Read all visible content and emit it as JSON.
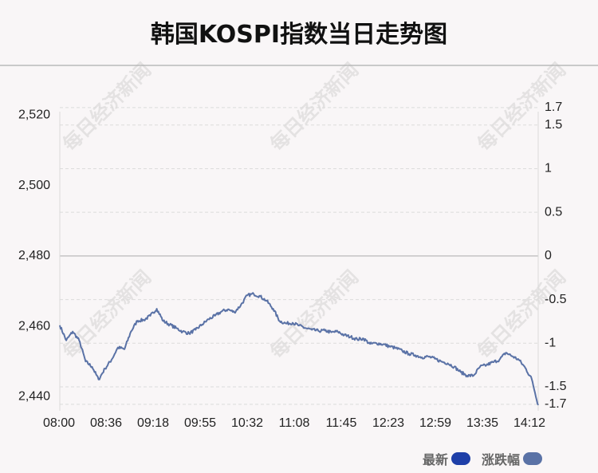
{
  "title": "韩国KOSPI指数当日走势图",
  "watermark": "每日经济新闻",
  "legend": {
    "latest_label": "最新",
    "latest_color": "#1e3fa8",
    "change_label": "涨跌幅",
    "change_color": "#5a72a6"
  },
  "chart_data": {
    "type": "line",
    "title": "韩国KOSPI指数当日走势图",
    "xlabel": "",
    "ylabel": "",
    "x_ticks": [
      "08:00",
      "08:36",
      "09:18",
      "09:55",
      "10:32",
      "11:08",
      "11:45",
      "12:23",
      "12:59",
      "13:35",
      "14:12"
    ],
    "y_left": {
      "ticks": [
        2440,
        2460,
        2480,
        2500,
        2520
      ],
      "tick_labels": [
        "2,440",
        "2,460",
        "2,480",
        "2,500",
        "2,520"
      ],
      "range": [
        2436,
        2521
      ]
    },
    "y_right": {
      "ticks": [
        -1.7,
        -1.5,
        -1,
        -0.5,
        0,
        0.5,
        1,
        1.5,
        1.7
      ],
      "tick_labels": [
        "-1.7",
        "-1.5",
        "-1",
        "-0.5",
        "0",
        "0.5",
        "1",
        "1.5",
        "1.7"
      ]
    },
    "baseline": 2480,
    "grid": true,
    "legend_position": "bottom-right",
    "series": [
      {
        "values": [
          2460.3,
          2456,
          2458.5,
          2456,
          2450,
          2448.5,
          2444.9,
          2448,
          2450.5,
          2454,
          2453.5,
          2458.5,
          2461.6,
          2461.8,
          2463,
          2465,
          2461.5,
          2460.5,
          2459.5,
          2458.5,
          2458,
          2459,
          2460.5,
          2462,
          2463,
          2464.2,
          2464.8,
          2464,
          2466,
          2468.8,
          2469.2,
          2468.5,
          2467.2,
          2465,
          2461.5,
          2460.8,
          2461,
          2460.2,
          2459.5,
          2459,
          2458.7,
          2458.8,
          2458.3,
          2458.5,
          2457.5,
          2457,
          2456.3,
          2456.5,
          2455,
          2455.2,
          2454.9,
          2454.3,
          2453.8,
          2453,
          2452.2,
          2451.8,
          2451.2,
          2451.4,
          2450.8,
          2450,
          2449.5,
          2448.5,
          2447,
          2446,
          2446,
          2448.5,
          2449,
          2449.8,
          2450.5,
          2452.5,
          2451.5,
          2450.5,
          2448.2,
          2445,
          2437.6
        ]
      }
    ]
  }
}
